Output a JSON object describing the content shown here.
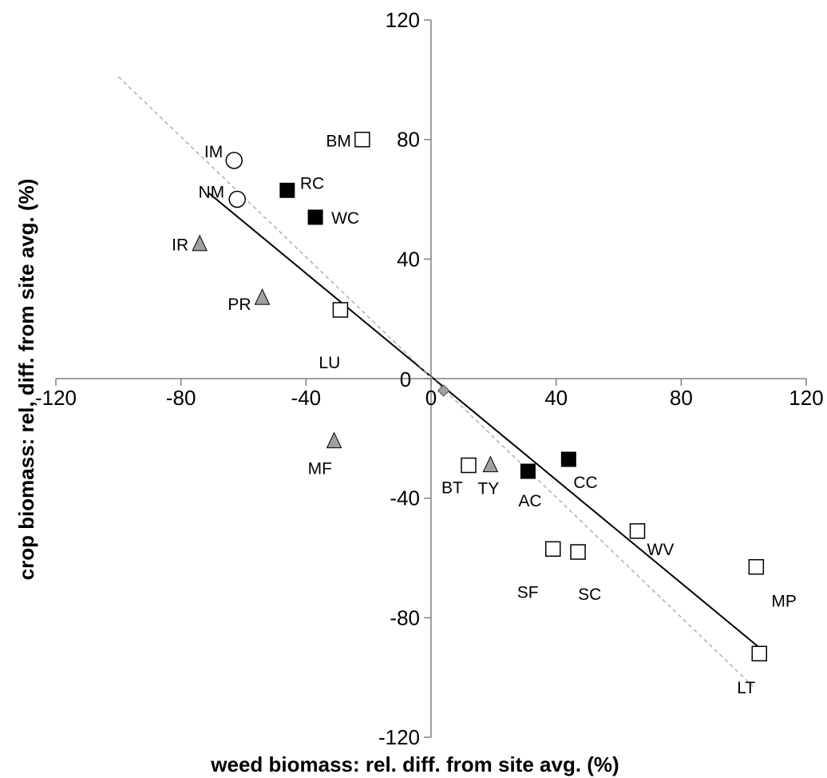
{
  "chart_data": {
    "type": "scatter",
    "xlabel": "weed biomass: rel. diff. from site avg. (%)",
    "ylabel": "crop biomass: rel, diff. from site avg. (%)",
    "xlim": [
      -120,
      120
    ],
    "ylim": [
      -120,
      120
    ],
    "xticks": [
      "-120",
      "-80",
      "-40",
      "0",
      "40",
      "80",
      "120"
    ],
    "yticks": [
      "-120",
      "-80",
      "-40",
      "0",
      "40",
      "80",
      "120"
    ],
    "grid": false,
    "legend": "none",
    "points": [
      {
        "label": "IM",
        "x": -63,
        "y": 73,
        "marker": "circle-open"
      },
      {
        "label": "NM",
        "x": -62,
        "y": 60,
        "marker": "circle-open"
      },
      {
        "label": "BM",
        "x": -22,
        "y": 80,
        "marker": "square-open"
      },
      {
        "label": "RC",
        "x": -46,
        "y": 63,
        "marker": "square-filled"
      },
      {
        "label": "WC",
        "x": -37,
        "y": 54,
        "marker": "square-filled"
      },
      {
        "label": "IR",
        "x": -74,
        "y": 45,
        "marker": "triangle-gray"
      },
      {
        "label": "PR",
        "x": -54,
        "y": 27,
        "marker": "triangle-gray"
      },
      {
        "label": "LU",
        "x": -29,
        "y": 23,
        "marker": "square-open"
      },
      {
        "label": "MF",
        "x": -31,
        "y": -21,
        "marker": "triangle-gray"
      },
      {
        "label": "BT",
        "x": 12,
        "y": -29,
        "marker": "square-open"
      },
      {
        "label": "TY",
        "x": 19,
        "y": -29,
        "marker": "triangle-gray"
      },
      {
        "label": "AC",
        "x": 31,
        "y": -31,
        "marker": "square-filled"
      },
      {
        "label": "CC",
        "x": 44,
        "y": -27,
        "marker": "square-filled"
      },
      {
        "label": "SF",
        "x": 39,
        "y": -57,
        "marker": "square-open"
      },
      {
        "label": "SC",
        "x": 47,
        "y": -58,
        "marker": "square-open"
      },
      {
        "label": "WV",
        "x": 66,
        "y": -51,
        "marker": "square-open"
      },
      {
        "label": "MP",
        "x": 104,
        "y": -63,
        "marker": "square-open"
      },
      {
        "label": "LT",
        "x": 105,
        "y": -92,
        "marker": "square-open"
      },
      {
        "label": "",
        "x": 4,
        "y": -4,
        "marker": "diamond-gray"
      }
    ],
    "lines": [
      {
        "name": "",
        "style": "solid",
        "color": "#000000",
        "x": [
          -71,
          105
        ],
        "y": [
          62,
          -90
        ]
      },
      {
        "name": "",
        "style": "dashed",
        "color": "#b0b0b0",
        "x": [
          -100,
          103
        ],
        "y": [
          101,
          -103
        ]
      }
    ],
    "colors": {
      "filled": "#000000",
      "triangle": "#a0a0a0",
      "open": "#ffffff",
      "axis": "#808080"
    }
  }
}
